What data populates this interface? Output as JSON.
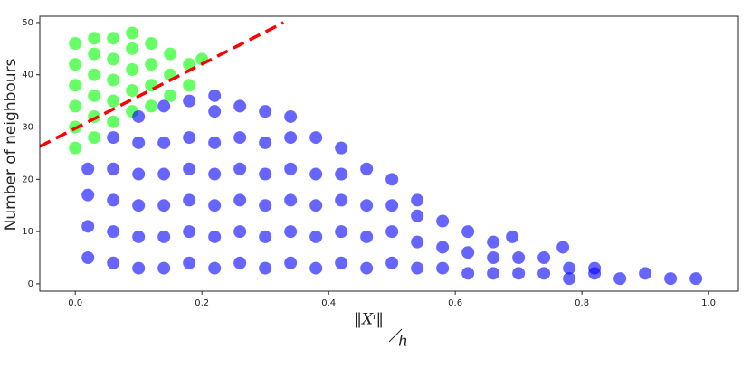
{
  "chart_data": {
    "type": "scatter",
    "ylabel": "Number of neighbours",
    "xlabel_top": "‖Xⁱ‖",
    "xlabel_bottom": "h",
    "xlim": [
      -0.056,
      1.047
    ],
    "ylim": [
      -1.4,
      51.2
    ],
    "xticks": [
      {
        "value": 0,
        "label": "0.0"
      },
      0.2,
      0.4,
      0.6,
      0.8,
      {
        "value": 1,
        "label": "1.0"
      }
    ],
    "yticks": [
      0,
      10,
      20,
      30,
      40,
      50
    ],
    "series": [
      {
        "color": "#00ff00",
        "x": [
          0,
          0,
          0,
          0,
          0,
          0,
          0.03,
          0.03,
          0.03,
          0.03,
          0.03,
          0.03,
          0.06,
          0.06,
          0.06,
          0.06,
          0.06,
          0.09,
          0.09,
          0.09,
          0.09,
          0.09,
          0.12,
          0.12,
          0.12,
          0.12,
          0.15,
          0.15,
          0.15,
          0.18,
          0.18,
          0.2
        ],
        "values": [
          26,
          30,
          34,
          38,
          42,
          46,
          28,
          32,
          36,
          40,
          44,
          47,
          31,
          35,
          39,
          43,
          47,
          33,
          37,
          41,
          45,
          48,
          34,
          38,
          42,
          46,
          36,
          40,
          44,
          38,
          42,
          43
        ]
      },
      {
        "color": "#0000ff",
        "x": [
          0.02,
          0.02,
          0.02,
          0.02,
          0.06,
          0.06,
          0.06,
          0.06,
          0.06,
          0.1,
          0.1,
          0.1,
          0.1,
          0.1,
          0.1,
          0.14,
          0.14,
          0.14,
          0.14,
          0.14,
          0.14,
          0.18,
          0.18,
          0.18,
          0.18,
          0.18,
          0.18,
          0.22,
          0.22,
          0.22,
          0.22,
          0.22,
          0.22,
          0.22,
          0.26,
          0.26,
          0.26,
          0.26,
          0.26,
          0.26,
          0.3,
          0.3,
          0.3,
          0.3,
          0.3,
          0.3,
          0.34,
          0.34,
          0.34,
          0.34,
          0.34,
          0.34,
          0.38,
          0.38,
          0.38,
          0.38,
          0.38,
          0.42,
          0.42,
          0.42,
          0.42,
          0.42,
          0.46,
          0.46,
          0.46,
          0.46,
          0.5,
          0.5,
          0.5,
          0.5,
          0.54,
          0.54,
          0.54,
          0.54,
          0.58,
          0.58,
          0.58,
          0.62,
          0.62,
          0.62,
          0.66,
          0.66,
          0.66,
          0.7,
          0.7,
          0.74,
          0.74,
          0.78,
          0.78,
          0.82,
          0.82,
          0.86,
          0.9,
          0.94,
          0.98,
          0.77,
          0.69
        ],
        "values": [
          5,
          11,
          17,
          22,
          4,
          10,
          16,
          22,
          28,
          3,
          9,
          15,
          21,
          27,
          32,
          3,
          9,
          15,
          21,
          27,
          34,
          4,
          10,
          16,
          22,
          28,
          35,
          3,
          9,
          15,
          21,
          27,
          33,
          36,
          4,
          10,
          16,
          22,
          28,
          34,
          3,
          9,
          15,
          21,
          27,
          33,
          4,
          10,
          16,
          22,
          28,
          32,
          3,
          9,
          15,
          21,
          28,
          4,
          10,
          16,
          21,
          26,
          3,
          9,
          15,
          22,
          4,
          10,
          15,
          20,
          3,
          8,
          13,
          16,
          3,
          7,
          12,
          2,
          6,
          10,
          2,
          5,
          8,
          2,
          5,
          2,
          5,
          1,
          3,
          2,
          3,
          1,
          2,
          1,
          1,
          7,
          9
        ]
      },
      {
        "color": "#ff0000",
        "line": "dashed",
        "x": [
          -0.056,
          0.329
        ],
        "values": [
          26.3,
          50
        ]
      }
    ]
  }
}
